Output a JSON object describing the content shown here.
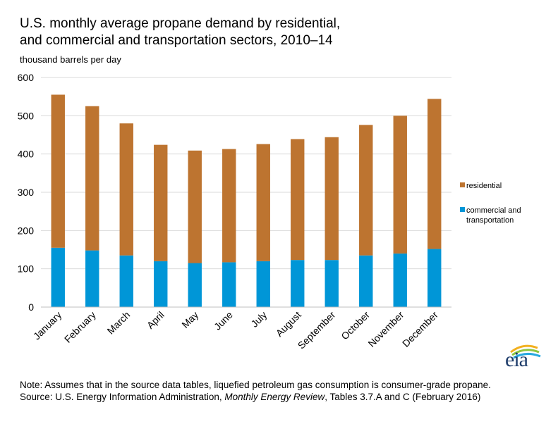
{
  "title_line1": "U.S. monthly average propane demand by residential,",
  "title_line2": "and commercial and transportation sectors, 2010–14",
  "unit_label": "thousand barrels per day",
  "note": {
    "line1": "Note: Assumes that in the source data tables, liquefied petroleum gas consumption is consumer-grade propane.",
    "source_prefix": "Source: U.S. Energy Information Administration, ",
    "source_italic": "Monthly Energy Review",
    "source_suffix": ", Tables 3.7.A and C (February 2016)"
  },
  "logo_text": "eia",
  "colors": {
    "residential": "#bd7430",
    "commercial": "#0096d7",
    "grid": "#d9d9d9",
    "axis": "#bfbfbf"
  },
  "chart_data": {
    "type": "bar",
    "stacked": true,
    "categories": [
      "January",
      "February",
      "March",
      "April",
      "May",
      "June",
      "July",
      "August",
      "September",
      "October",
      "November",
      "December"
    ],
    "series": [
      {
        "name": "commercial and transportation",
        "values": [
          155,
          148,
          135,
          120,
          115,
          117,
          120,
          123,
          123,
          135,
          140,
          152
        ]
      },
      {
        "name": "residential",
        "values": [
          400,
          377,
          345,
          304,
          294,
          296,
          306,
          316,
          321,
          341,
          360,
          392
        ]
      }
    ],
    "ylabel": "thousand barrels per day",
    "ylim": [
      0,
      600
    ],
    "yticks": [
      0,
      100,
      200,
      300,
      400,
      500,
      600
    ],
    "grid": true,
    "legend_position": "right",
    "legend": [
      {
        "label": "residential"
      },
      {
        "label_line1": "commercial and",
        "label_line2": "transportation"
      }
    ]
  }
}
